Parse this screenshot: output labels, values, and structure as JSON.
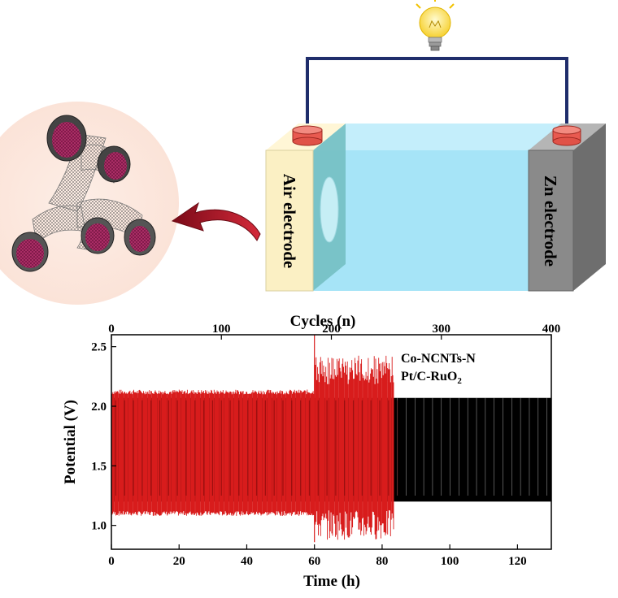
{
  "battery": {
    "air_label": "Air electrode",
    "zn_label": "Zn electrode"
  },
  "colors": {
    "wire": "#1f2d6b",
    "electrolyte": "#a6e4f7",
    "air": "#fbf0c4",
    "zn": "#8a8a8a",
    "arrow": "#b0162a",
    "co_series": "#000000",
    "pt_series": "#d81c1c"
  },
  "icons": [
    "light-bulb-icon",
    "curved-arrow-icon",
    "nanotube-catalyst-illustration"
  ],
  "chart_data": {
    "type": "line",
    "x_label": "Time (h)",
    "x_top_label": "Cycles (n)",
    "y_label": "Potential (V)",
    "x_range": [
      0,
      130
    ],
    "x_top_range": [
      0,
      400
    ],
    "y_range": [
      0.8,
      2.6
    ],
    "x_ticks": [
      0,
      20,
      40,
      60,
      80,
      100,
      120
    ],
    "x_top_ticks": [
      0,
      100,
      200,
      300,
      400
    ],
    "y_ticks": [
      1.0,
      1.5,
      2.0,
      2.5
    ],
    "legend_position": "top-right",
    "series": [
      {
        "name": "Co-NCNTs-N",
        "color": "#000000",
        "t_end": 130,
        "charge_v": 2.07,
        "discharge_v": 1.2
      },
      {
        "name": "Pt/C-RuO2",
        "legend_text": "Pt/C-RuO",
        "legend_sub": "2",
        "color": "#d81c1c",
        "t_end": 83.5,
        "stable_until": 60,
        "charge_v_initial": 2.12,
        "discharge_v_initial": 1.1,
        "charge_v_late": 2.43,
        "discharge_v_late": 0.88
      }
    ]
  }
}
